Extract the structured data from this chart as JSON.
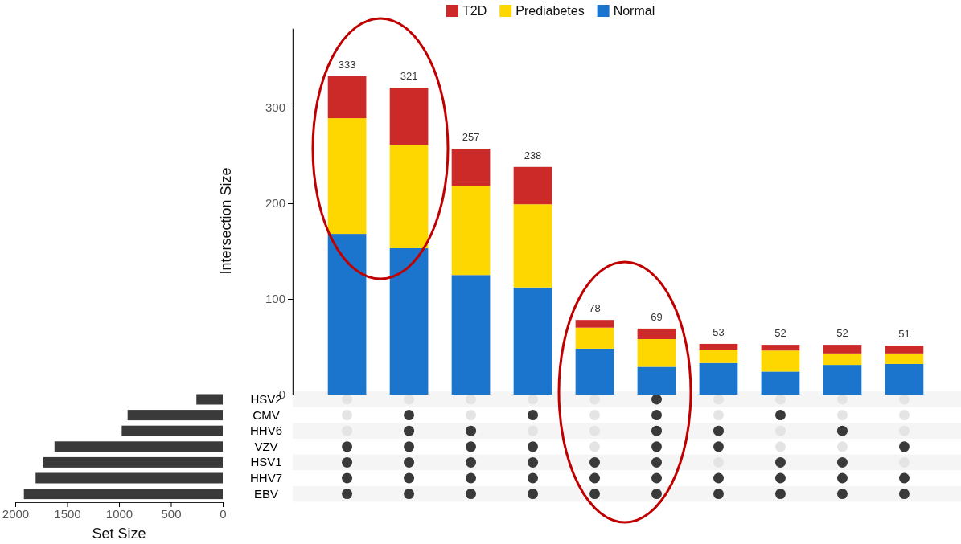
{
  "chart_data": [
    {
      "type": "bar",
      "stacked": true,
      "ylabel": "Intersection Size",
      "categories": [
        null,
        null,
        null,
        null,
        null,
        null,
        null,
        null,
        null,
        null
      ],
      "ylim": [
        0,
        383
      ],
      "yticks": [
        0,
        100,
        200,
        300
      ],
      "tick_labels": "y",
      "legend": "top",
      "totals": [
        "333",
        "321",
        "257",
        "238",
        "78",
        "69",
        "53",
        "52",
        "52",
        "51"
      ],
      "series": [
        {
          "name": "Normal",
          "color": "#1b75cc",
          "values": [
            168,
            153,
            125,
            112,
            48,
            29,
            33,
            24,
            31,
            32
          ]
        },
        {
          "name": "Prediabetes",
          "color": "#ffd700",
          "values": [
            121,
            108,
            93,
            87,
            22,
            29,
            14,
            22,
            12,
            11
          ]
        },
        {
          "name": "T2D",
          "color": "#cc2929",
          "values": [
            44,
            60,
            39,
            39,
            8,
            11,
            6,
            6,
            9,
            8
          ]
        }
      ]
    },
    {
      "type": "bar",
      "orientation": "horizontal",
      "xlabel": "Set Size",
      "categories": [
        "HSV2",
        "CMV",
        "HHV6",
        "VZV",
        "HSV1",
        "HHV7",
        "EBV"
      ],
      "values": [
        254,
        917,
        974,
        1622,
        1729,
        1804,
        1917
      ],
      "color": "#3a3a3a",
      "xlim": [
        2000,
        0
      ],
      "xticks": [
        2000,
        1500,
        1000,
        500,
        0
      ]
    }
  ]
}
